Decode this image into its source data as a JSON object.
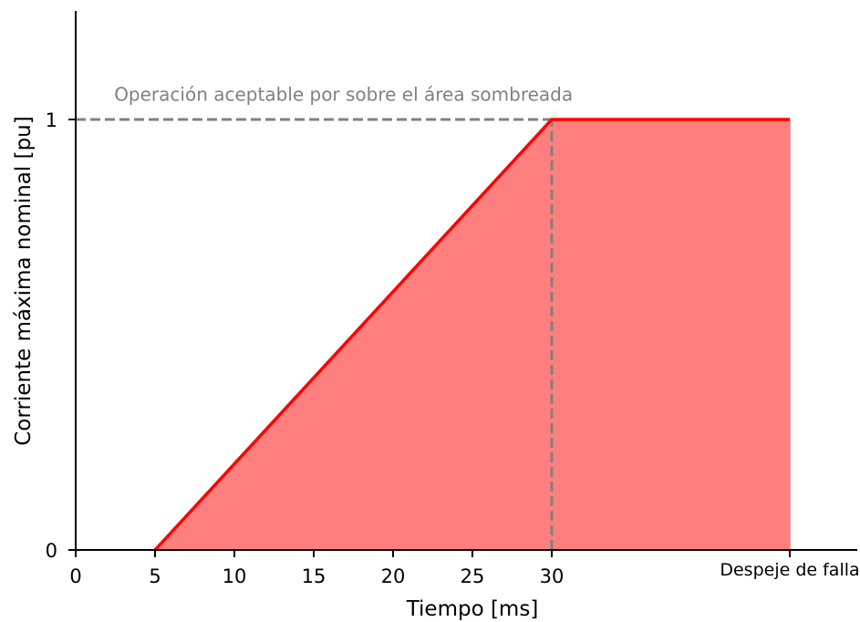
{
  "chart_data": {
    "type": "area",
    "title": "",
    "xlabel": "Tiempo [ms]",
    "ylabel": "Corriente máxima nominal [pu]",
    "xlim": [
      0,
      45
    ],
    "ylim": [
      0,
      1.25
    ],
    "x_ticks": [
      {
        "value": 0,
        "label": "0"
      },
      {
        "value": 5,
        "label": "5"
      },
      {
        "value": 10,
        "label": "10"
      },
      {
        "value": 15,
        "label": "15"
      },
      {
        "value": 20,
        "label": "20"
      },
      {
        "value": 25,
        "label": "25"
      },
      {
        "value": 30,
        "label": "30"
      },
      {
        "value": 45,
        "label": "Despeje de falla"
      }
    ],
    "y_ticks": [
      {
        "value": 0,
        "label": "0"
      },
      {
        "value": 1,
        "label": "1"
      }
    ],
    "grid": false,
    "series": [
      {
        "x": [
          5,
          30,
          45
        ],
        "y": [
          0,
          1,
          1
        ],
        "color": "#ff0000",
        "fill_color": "#ff7f7f",
        "filled": true
      }
    ],
    "reference_lines": [
      {
        "orientation": "horizontal",
        "y": 1,
        "x_range": [
          0,
          30
        ],
        "style": "dashed",
        "color": "#808080"
      },
      {
        "orientation": "vertical",
        "x": 30,
        "y_range": [
          0,
          1
        ],
        "style": "dashed",
        "color": "#808080"
      }
    ],
    "annotations": [
      {
        "text": "Operación aceptable por sobre el área sombreada",
        "x": 3,
        "y": 1.06,
        "color": "#808080"
      }
    ],
    "spines": {
      "top": false,
      "right": false,
      "left": true,
      "bottom": true
    }
  }
}
